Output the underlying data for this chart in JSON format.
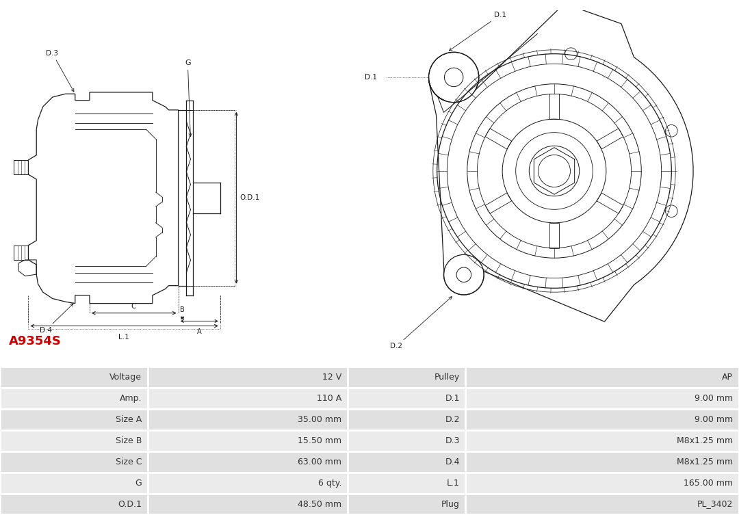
{
  "title": "A9354S",
  "title_color": "#cc0000",
  "bg_color": "#ffffff",
  "table_rows": [
    [
      "Voltage",
      "12 V",
      "Pulley",
      "AP"
    ],
    [
      "Amp.",
      "110 A",
      "D.1",
      "9.00 mm"
    ],
    [
      "Size A",
      "35.00 mm",
      "D.2",
      "9.00 mm"
    ],
    [
      "Size B",
      "15.50 mm",
      "D.3",
      "M8x1.25 mm"
    ],
    [
      "Size C",
      "63.00 mm",
      "D.4",
      "M8x1.25 mm"
    ],
    [
      "G",
      "6 qty.",
      "L.1",
      "165.00 mm"
    ],
    [
      "O.D.1",
      "48.50 mm",
      "Plug",
      "PL_3402"
    ]
  ],
  "row_bg_even": "#e0e0e0",
  "row_bg_odd": "#ebebeb",
  "table_border_color": "#ffffff",
  "cell_text_color": "#333333",
  "font_size_table": 9,
  "font_size_title": 13,
  "lc": "#1a1a1a",
  "dim_color": "#1a1a1a"
}
